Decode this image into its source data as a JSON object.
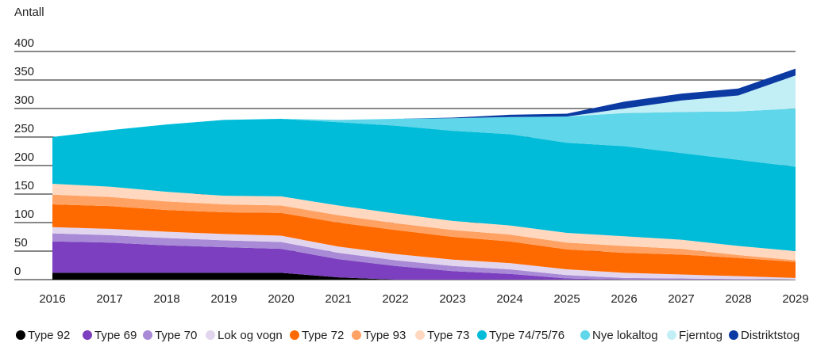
{
  "chart_data": {
    "type": "stacked_area",
    "y_label": "Antall",
    "x": [
      2016,
      2017,
      2018,
      2019,
      2020,
      2021,
      2022,
      2023,
      2024,
      2025,
      2026,
      2027,
      2028,
      2029
    ],
    "xlim": [
      2016,
      2029
    ],
    "xticks": [
      2016,
      2017,
      2018,
      2019,
      2020,
      2021,
      2022,
      2023,
      2024,
      2025,
      2026,
      2027,
      2028,
      2029
    ],
    "ylim": [
      0,
      400
    ],
    "yticks": [
      0,
      50,
      100,
      150,
      200,
      250,
      300,
      350,
      400
    ],
    "grid": true,
    "legend": "bottom",
    "series": [
      {
        "name": "Type 92",
        "color": "#000000",
        "values": [
          12,
          12,
          12,
          12,
          12,
          4,
          0,
          0,
          0,
          0,
          0,
          0,
          0,
          0
        ]
      },
      {
        "name": "Type 69",
        "color": "#7b3fbf",
        "values": [
          55,
          53,
          48,
          45,
          42,
          32,
          24,
          15,
          10,
          2,
          0,
          0,
          0,
          0
        ]
      },
      {
        "name": "Type 70",
        "color": "#a98ad6",
        "values": [
          14,
          13,
          13,
          12,
          12,
          11,
          10,
          9,
          8,
          6,
          3,
          2,
          1,
          0
        ]
      },
      {
        "name": "Lok og vogn",
        "color": "#e2d6ef",
        "values": [
          11,
          11,
          11,
          11,
          11,
          11,
          11,
          11,
          11,
          10,
          9,
          7,
          5,
          3
        ]
      },
      {
        "name": "Type 72",
        "color": "#ff6a00",
        "values": [
          40,
          40,
          38,
          38,
          40,
          42,
          42,
          40,
          38,
          35,
          35,
          35,
          32,
          28
        ]
      },
      {
        "name": "Type 93",
        "color": "#ffa264",
        "values": [
          17,
          16,
          15,
          14,
          13,
          13,
          12,
          12,
          12,
          12,
          12,
          10,
          5,
          3
        ]
      },
      {
        "name": "Type 73",
        "color": "#ffd8bf",
        "values": [
          19,
          18,
          17,
          15,
          16,
          17,
          17,
          16,
          16,
          17,
          17,
          16,
          16,
          16
        ]
      },
      {
        "name": "Type 74/75/76",
        "color": "#00bcd9",
        "values": [
          82,
          99,
          118,
          133,
          136,
          146,
          154,
          158,
          160,
          158,
          158,
          152,
          151,
          148
        ]
      },
      {
        "name": "Nye lokaltog",
        "color": "#5fd6e9",
        "values": [
          0,
          0,
          0,
          0,
          0,
          4,
          12,
          22,
          30,
          46,
          58,
          72,
          85,
          102
        ]
      },
      {
        "name": "Fjerntog",
        "color": "#c2eef6",
        "values": [
          0,
          0,
          0,
          0,
          0,
          0,
          0,
          0,
          0,
          0,
          8,
          20,
          28,
          58
        ]
      },
      {
        "name": "Distriktstog",
        "color": "#0b3aa3",
        "values": [
          0,
          0,
          0,
          0,
          0,
          0,
          0,
          1,
          4,
          5,
          12,
          12,
          12,
          12
        ]
      }
    ]
  }
}
